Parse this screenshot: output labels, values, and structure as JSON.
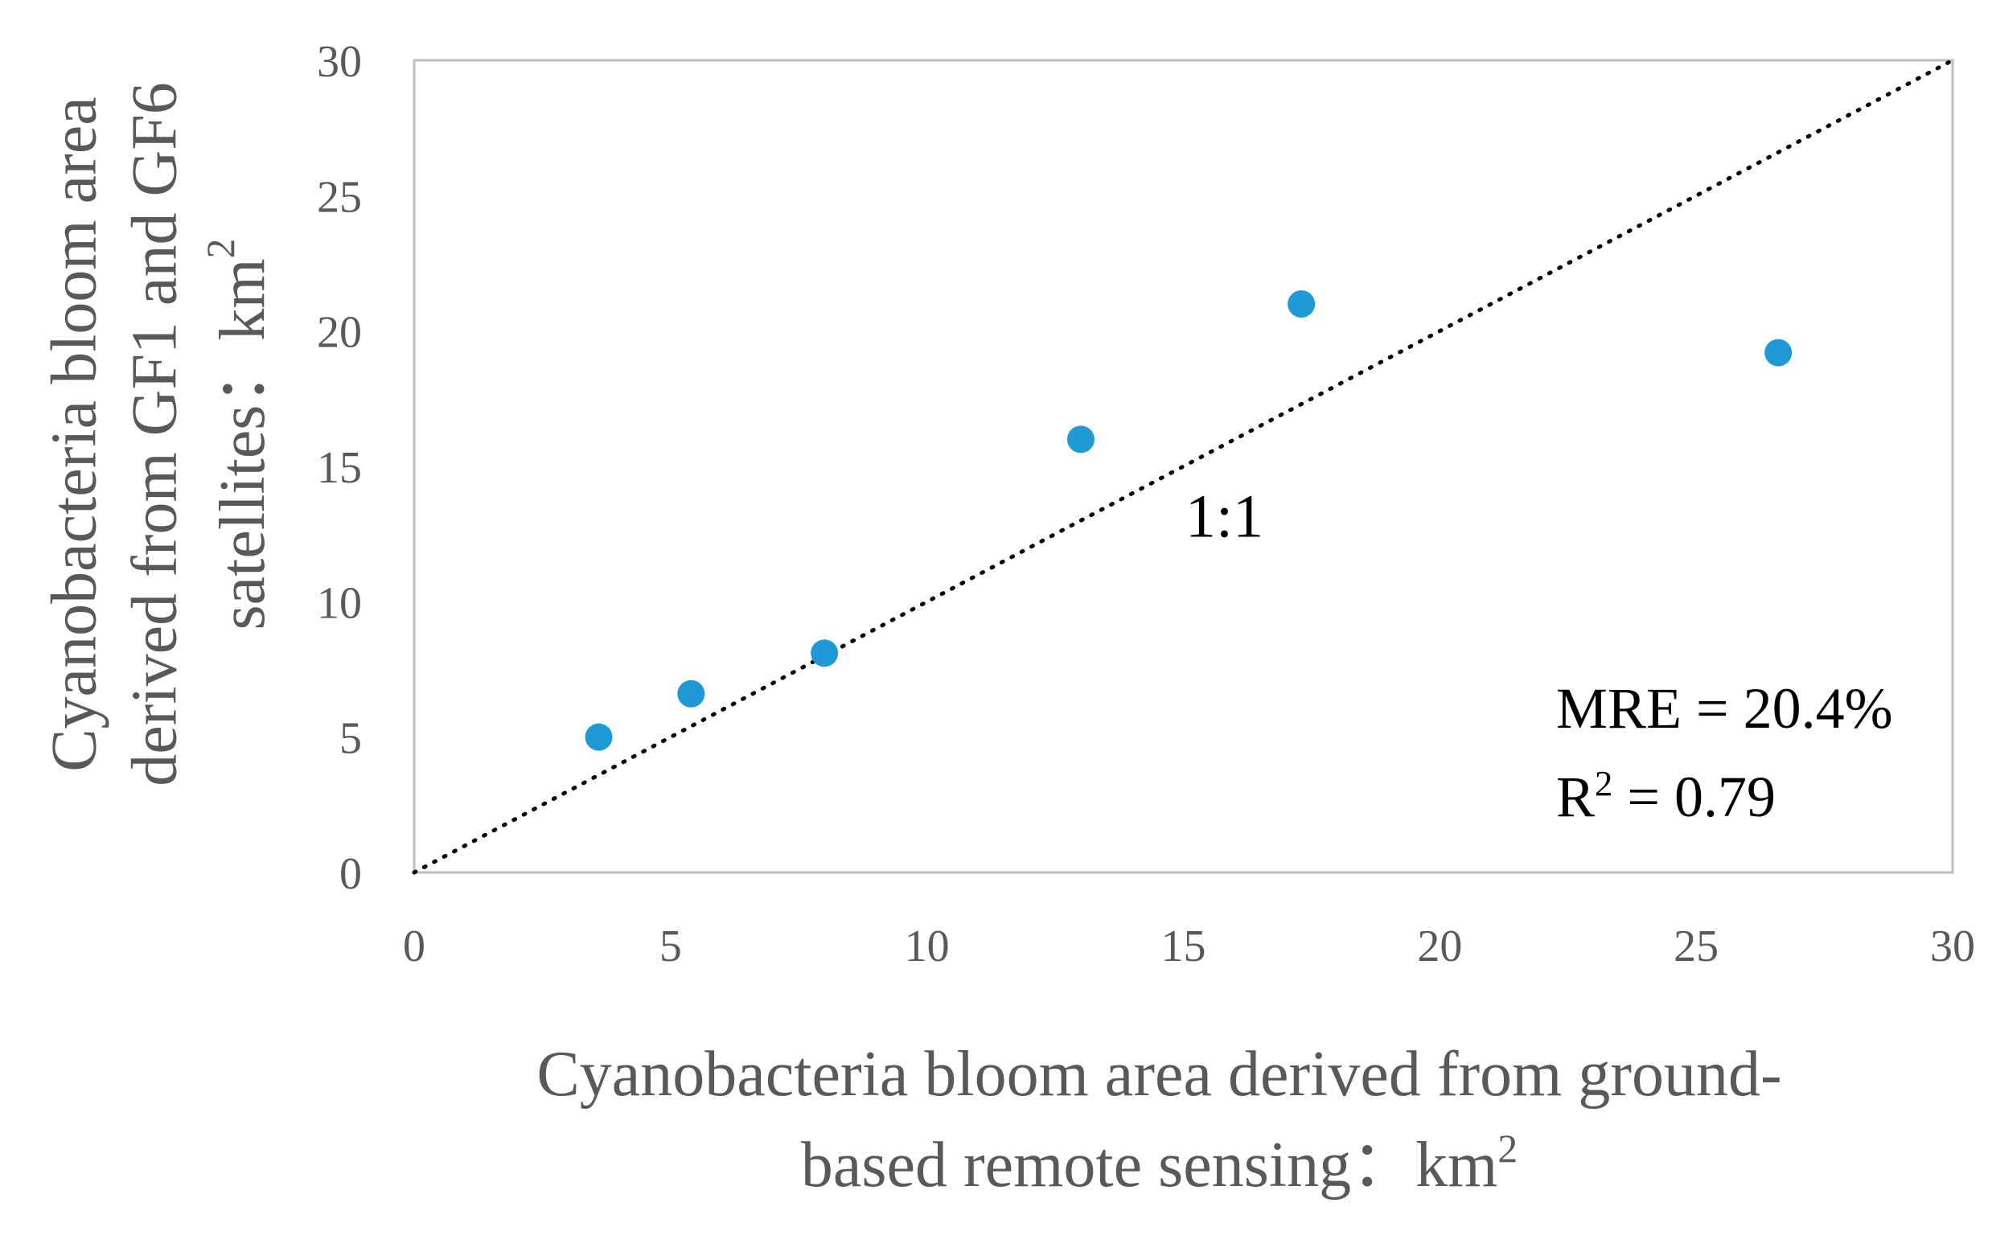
{
  "chart_data": {
    "type": "scatter",
    "xlabel_lines": [
      "Cyanobacteria bloom area derived from ground-",
      "based remote sensing：km"
    ],
    "xlabel_superscript": "2",
    "ylabel_lines": [
      "Cyanobacteria bloom area",
      "derived from GF1 and GF6",
      "satellites：km"
    ],
    "ylabel_superscript": "2",
    "xlim": [
      0,
      30
    ],
    "ylim": [
      0,
      30
    ],
    "x_ticks": [
      0,
      5,
      10,
      15,
      20,
      25,
      30
    ],
    "y_ticks": [
      0,
      5,
      10,
      15,
      20,
      25,
      30
    ],
    "grid": false,
    "points": [
      {
        "x": 3.6,
        "y": 5.0
      },
      {
        "x": 5.4,
        "y": 6.6
      },
      {
        "x": 8.0,
        "y": 8.1
      },
      {
        "x": 13.0,
        "y": 16.0
      },
      {
        "x": 17.3,
        "y": 21.0
      },
      {
        "x": 26.6,
        "y": 19.2
      }
    ],
    "marker_color": "#1f9ad6",
    "reference_line": {
      "label": "1:1",
      "from": [
        0,
        0
      ],
      "to": [
        30,
        30
      ],
      "style": "dotted",
      "color": "#000000"
    },
    "annotations": {
      "mre": "MRE = 20.4%",
      "r2_prefix": "R",
      "r2_sup": "2",
      "r2_suffix": " = 0.79"
    }
  }
}
